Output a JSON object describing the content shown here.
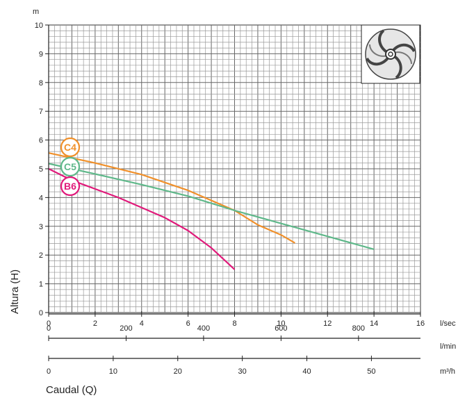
{
  "chart_data": {
    "type": "line",
    "ylabel": "Altura (H)",
    "y_unit": "m",
    "xlabel": "Caudal (Q)",
    "ylim": [
      0,
      10
    ],
    "xlim": [
      0,
      16
    ],
    "grid": true,
    "y_ticks": [
      "0",
      "1",
      "2",
      "3",
      "4",
      "5",
      "6",
      "7",
      "8",
      "9",
      "10"
    ],
    "x_axes": [
      {
        "unit": "l/sec",
        "ticks": [
          {
            "v": 0,
            "label": "0"
          },
          {
            "v": 2,
            "label": "2"
          },
          {
            "v": 4,
            "label": "4"
          },
          {
            "v": 6,
            "label": "6"
          },
          {
            "v": 8,
            "label": "8"
          },
          {
            "v": 10,
            "label": "10"
          },
          {
            "v": 12,
            "label": "12"
          },
          {
            "v": 14,
            "label": "14"
          },
          {
            "v": 16,
            "label": "16"
          }
        ]
      },
      {
        "unit": "l/min",
        "ticks": [
          {
            "v": 0,
            "label": "0"
          },
          {
            "v": 200,
            "label": "200"
          },
          {
            "v": 400,
            "label": "400"
          },
          {
            "v": 600,
            "label": "600"
          },
          {
            "v": 800,
            "label": "800"
          }
        ]
      },
      {
        "unit": "m³/h",
        "ticks": [
          {
            "v": 0,
            "label": "0"
          },
          {
            "v": 10,
            "label": "10"
          },
          {
            "v": 20,
            "label": "20"
          },
          {
            "v": 30,
            "label": "30"
          },
          {
            "v": 40,
            "label": "40"
          },
          {
            "v": 50,
            "label": "50"
          }
        ]
      }
    ],
    "series": [
      {
        "name": "C4",
        "color": "#f0902a",
        "x": [
          0,
          2,
          4,
          6,
          8,
          9,
          10,
          10.6
        ],
        "y": [
          5.55,
          5.2,
          4.8,
          4.25,
          3.55,
          3.05,
          2.7,
          2.42
        ]
      },
      {
        "name": "C5",
        "color": "#5fb88a",
        "x": [
          0,
          2,
          4,
          6,
          8,
          10,
          12,
          14
        ],
        "y": [
          5.18,
          4.82,
          4.45,
          4.05,
          3.55,
          3.1,
          2.65,
          2.2
        ]
      },
      {
        "name": "B6",
        "color": "#e0197a",
        "x": [
          0,
          1,
          2,
          3,
          4,
          5,
          6,
          7,
          8
        ],
        "y": [
          5.0,
          4.6,
          4.3,
          4.0,
          3.65,
          3.3,
          2.85,
          2.25,
          1.5
        ]
      }
    ]
  },
  "impeller": {
    "icon": "impeller-icon"
  }
}
